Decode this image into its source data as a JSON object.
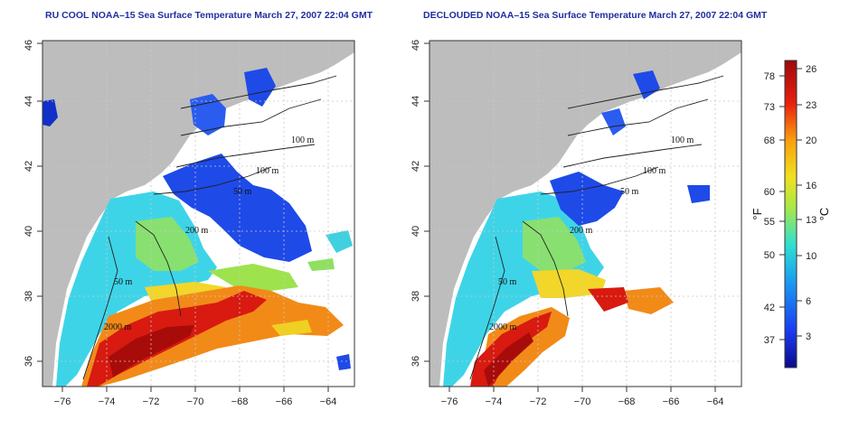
{
  "panels": [
    {
      "title": "RU COOL NOAA–15 Sea Surface Temperature March 27, 2007 22:04 GMT",
      "contour_labels": [
        "100 m",
        "100 m",
        "50 m",
        "200 m",
        "50 m",
        "2000 m"
      ]
    },
    {
      "title": "DECLOUDED NOAA–15 Sea Surface Temperature March 27, 2007 22:04 GMT",
      "contour_labels": [
        "100 m",
        "100 m",
        "50 m",
        "200 m",
        "50 m",
        "2000 m"
      ]
    }
  ],
  "axes": {
    "x_ticks": [
      "−76",
      "−74",
      "−72",
      "−70",
      "−68",
      "−66",
      "−64"
    ],
    "y_ticks": [
      "36",
      "38",
      "40",
      "42",
      "44",
      "46"
    ]
  },
  "colorbar": {
    "fahrenheit_ticks": [
      "78",
      "73",
      "68",
      "60",
      "55",
      "50",
      "42",
      "37"
    ],
    "celsius_ticks": [
      "26",
      "23",
      "20",
      "16",
      "13",
      "10",
      "6",
      "3"
    ],
    "fahrenheit_unit": "°F",
    "celsius_unit": "°C",
    "colors": [
      "#0a0a8c",
      "#1a3cf0",
      "#1a9cf0",
      "#2ee0d0",
      "#a8e84a",
      "#f0e020",
      "#f8a010",
      "#e82010",
      "#9c0a0a"
    ]
  },
  "colors": {
    "land": "#bdbdbd",
    "grid": "#c8c8c8",
    "title": "#1f2fa0"
  }
}
